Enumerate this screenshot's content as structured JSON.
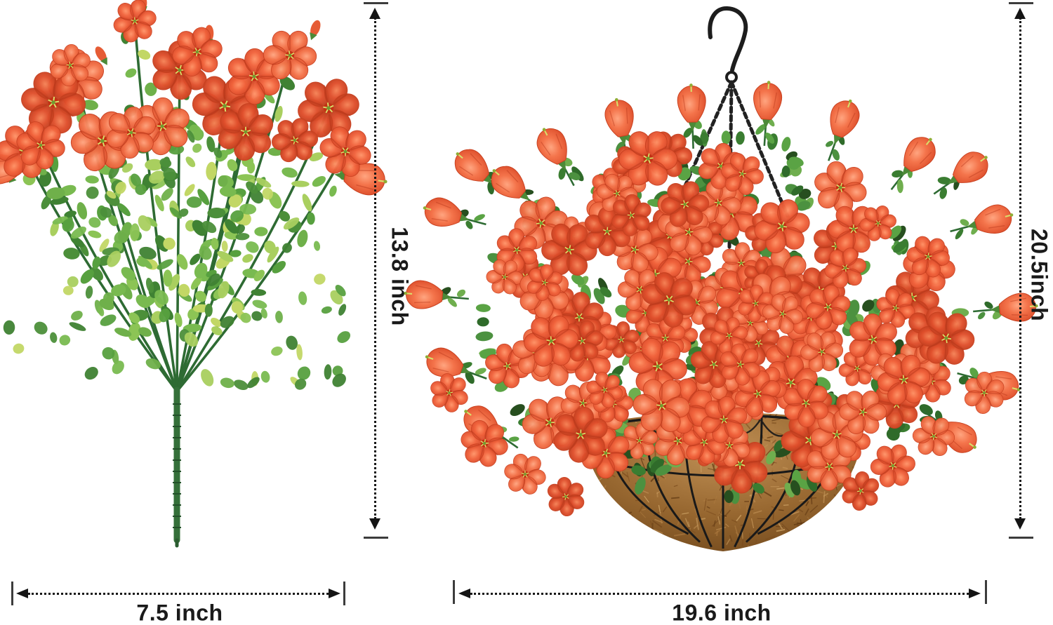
{
  "image_type": "product dimension photo of artificial flowers",
  "dimensions": {
    "bush_height": "13.8 inch",
    "bush_width": "7.5 inch",
    "basket_height": "20.5inch",
    "basket_width": "19.6 inch"
  },
  "items": {
    "left": "artificial orange flower bush with green eucalyptus foliage and segmented stalk",
    "right": "artificial orange petunia flowers in coco coir hanging basket with black hook and chains"
  },
  "colors": {
    "background": "#ffffff",
    "flower": "#ea5a36",
    "flower_dark": "#c23a22",
    "flower_light": "#ff9468",
    "foliage": "#4e9a3e",
    "foliage_dark": "#2f6b2a",
    "stem": "#2e6b33",
    "coir": "#96662f",
    "coir_dark": "#6d451a",
    "metal": "#1d1d1d",
    "dimension_line": "#141414"
  }
}
